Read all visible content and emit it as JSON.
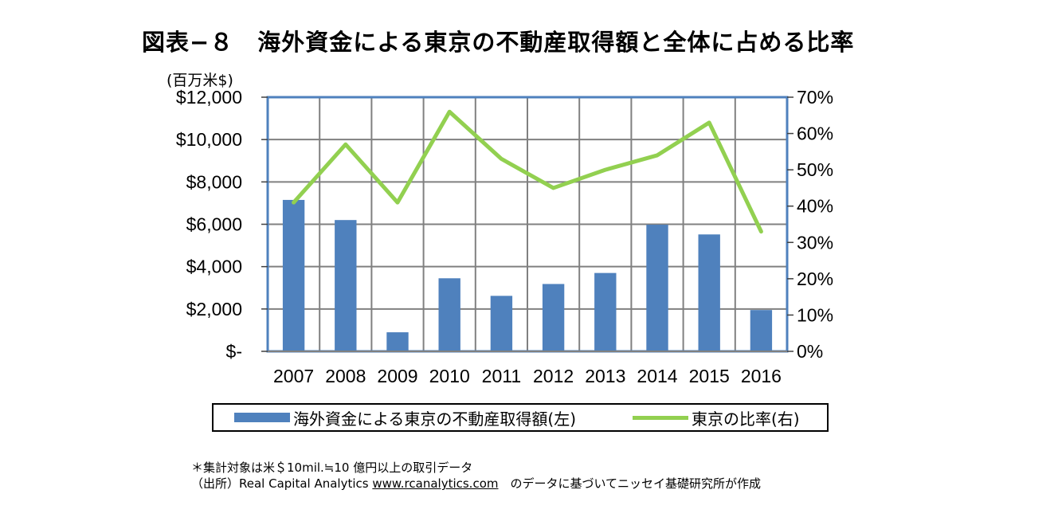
{
  "title": "図表−８　海外資金による東京の不動産取得額と全体に占める比率",
  "unit_label": "(百万米$)",
  "colors": {
    "bar": "#4f81bd",
    "line": "#92d050",
    "grid": "#808080",
    "frame": "#4f81bd"
  },
  "chart_data": {
    "type": "bar+line",
    "categories": [
      "2007",
      "2008",
      "2009",
      "2010",
      "2011",
      "2012",
      "2013",
      "2014",
      "2015",
      "2016"
    ],
    "series": [
      {
        "name": "海外資金による東京の不動産取得額(左)",
        "type": "bar",
        "axis": "left",
        "values": [
          7150,
          6200,
          900,
          3450,
          2620,
          3180,
          3700,
          5980,
          5520,
          1950
        ]
      },
      {
        "name": "東京の比率(右)",
        "type": "line",
        "axis": "right",
        "values": [
          0.41,
          0.57,
          0.41,
          0.66,
          0.53,
          0.45,
          0.5,
          0.54,
          0.63,
          0.33
        ]
      }
    ],
    "left_axis": {
      "ylim": [
        0,
        12000
      ],
      "ticks": [
        "$-",
        "$2,000",
        "$4,000",
        "$6,000",
        "$8,000",
        "$10,000",
        "$12,000"
      ]
    },
    "right_axis": {
      "ylim": [
        0,
        0.7
      ],
      "ticks": [
        "0%",
        "10%",
        "20%",
        "30%",
        "40%",
        "50%",
        "60%",
        "70%"
      ]
    },
    "grid": true,
    "legend": "bottom"
  },
  "notes": {
    "line1": "＊集計対象は米＄10mil.≒10 億円以上の取引データ",
    "line2_prefix": "（出所）Real Capital Analytics ",
    "line2_url": "www.rcanalytics.com",
    "line2_suffix": "　のデータに基づいてニッセイ基礎研究所が作成"
  }
}
